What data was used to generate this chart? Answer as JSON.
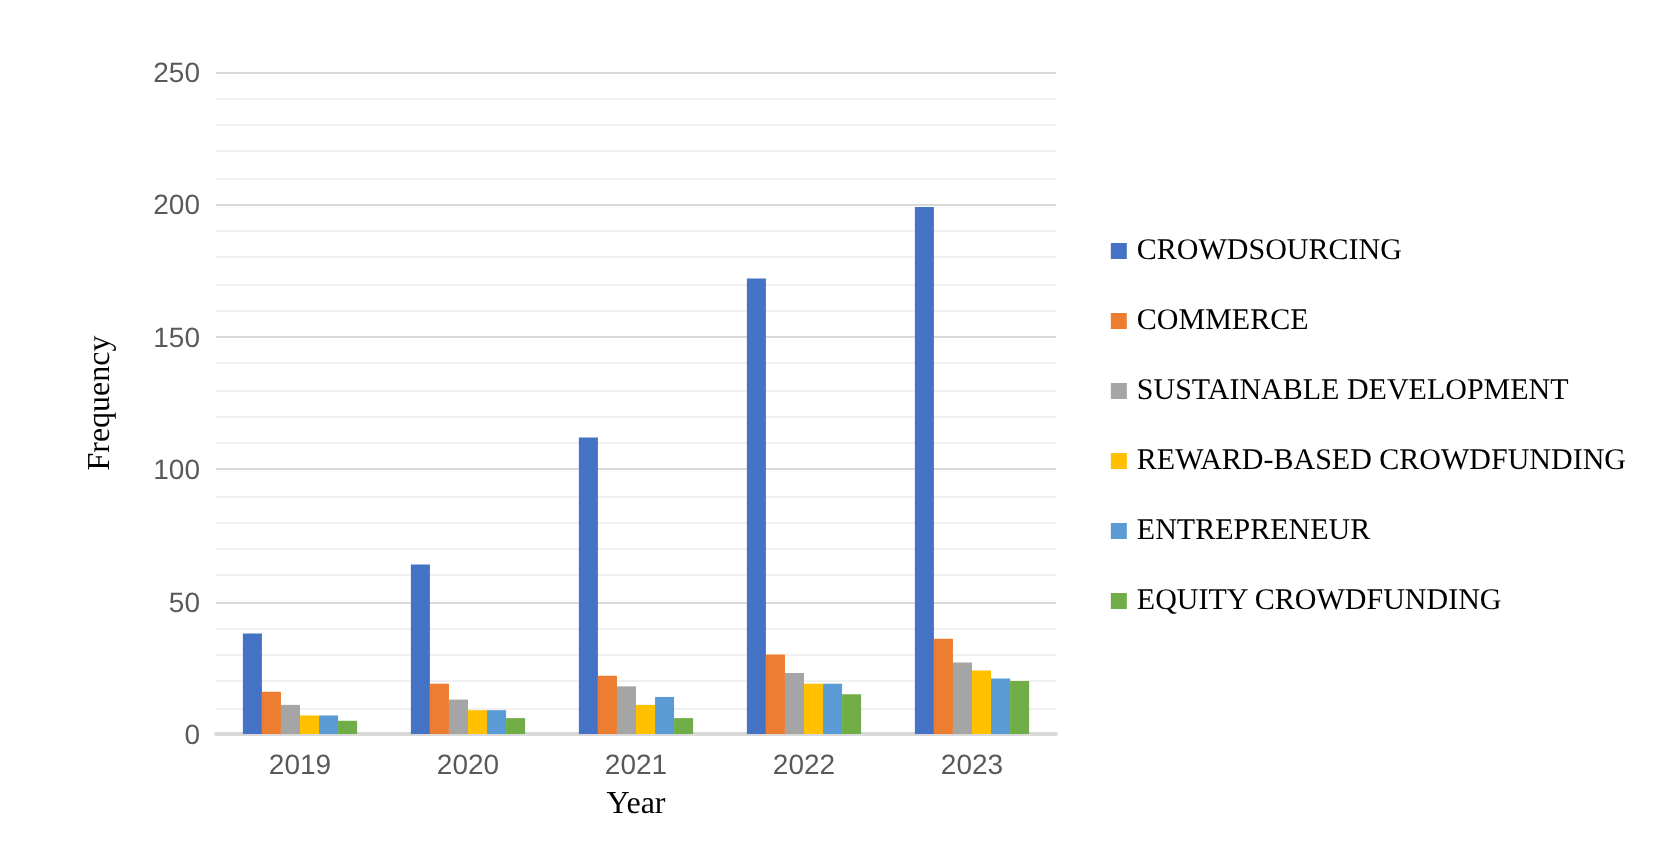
{
  "chart_data": {
    "type": "bar",
    "xlabel": "Year",
    "ylabel": "Frequency",
    "categories": [
      "2019",
      "2020",
      "2021",
      "2022",
      "2023"
    ],
    "series": [
      {
        "name": "CROWDSOURCING",
        "color": "#4472c4",
        "values": [
          38,
          64,
          112,
          172,
          199
        ]
      },
      {
        "name": "COMMERCE",
        "color": "#ed7d31",
        "values": [
          16,
          19,
          22,
          30,
          36
        ]
      },
      {
        "name": "SUSTAINABLE DEVELOPMENT",
        "color": "#a5a5a5",
        "values": [
          11,
          13,
          18,
          23,
          27
        ]
      },
      {
        "name": "REWARD-BASED CROWDFUNDING",
        "color": "#ffc000",
        "values": [
          7,
          9,
          11,
          19,
          24
        ]
      },
      {
        "name": "ENTREPRENEUR",
        "color": "#5b9bd5",
        "values": [
          7,
          9,
          14,
          19,
          21
        ]
      },
      {
        "name": "EQUITY CROWDFUNDING",
        "color": "#70ad47",
        "values": [
          5,
          6,
          6,
          15,
          20
        ]
      }
    ],
    "ylim": [
      0,
      250
    ],
    "yticks": [
      0,
      50,
      100,
      150,
      200,
      250
    ],
    "grid": "y",
    "legend": "right"
  }
}
